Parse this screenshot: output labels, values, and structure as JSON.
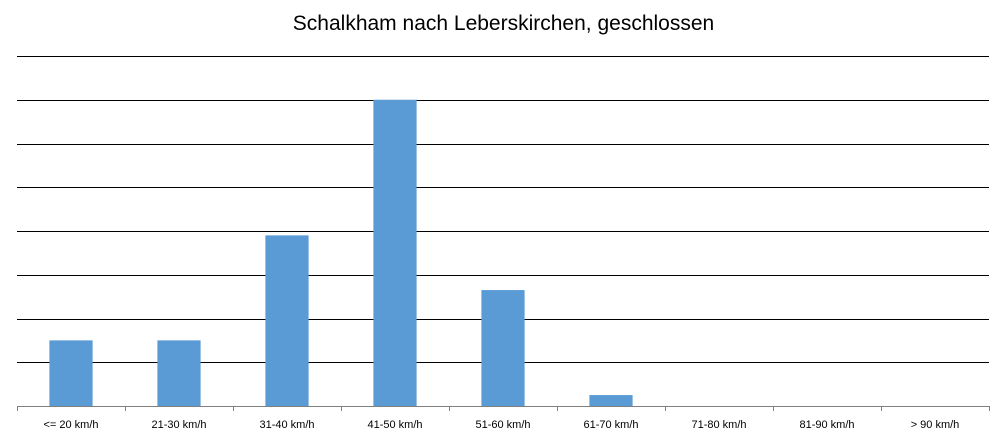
{
  "chart_data": {
    "type": "bar",
    "title": "Schalkham nach Leberskirchen, geschlossen",
    "xlabel": "",
    "ylabel": "",
    "categories": [
      "<= 20 km/h",
      "21-30 km/h",
      "31-40 km/h",
      "41-50 km/h",
      "51-60 km/h",
      "61-70 km/h",
      "71-80 km/h",
      "81-90 km/h",
      "> 90 km/h"
    ],
    "values": [
      1.5,
      1.5,
      3.9,
      7.0,
      2.65,
      0.25,
      0,
      0,
      0
    ],
    "ylim": [
      0,
      8
    ],
    "grid": true,
    "y_tick_labels_shown": false,
    "legend": "none",
    "colors": {
      "bar": "#5b9bd5",
      "grid": "#000000",
      "axis": "#808080"
    }
  }
}
